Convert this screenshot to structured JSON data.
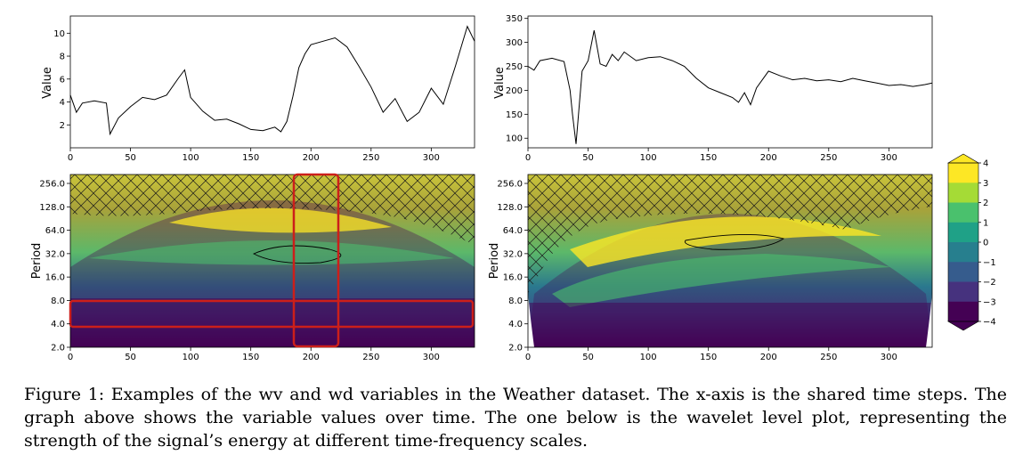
{
  "chart_data": [
    {
      "type": "line",
      "name": "wv",
      "ylabel": "Value",
      "xlim": [
        0,
        336
      ],
      "ylim": [
        0,
        11.5
      ],
      "x_ticks": [
        0,
        50,
        100,
        150,
        200,
        250,
        300
      ],
      "y_ticks": [
        2,
        4,
        6,
        8,
        10
      ],
      "x": [
        0,
        5,
        10,
        20,
        30,
        33,
        40,
        50,
        60,
        70,
        80,
        90,
        95,
        100,
        110,
        120,
        130,
        140,
        150,
        160,
        170,
        175,
        180,
        185,
        190,
        195,
        200,
        210,
        220,
        230,
        240,
        250,
        260,
        270,
        280,
        290,
        300,
        310,
        320,
        330,
        336
      ],
      "y": [
        4.6,
        3.1,
        3.9,
        4.1,
        3.9,
        1.2,
        2.6,
        3.6,
        4.4,
        4.2,
        4.6,
        6.1,
        6.8,
        4.4,
        3.2,
        2.4,
        2.5,
        2.1,
        1.6,
        1.5,
        1.8,
        1.4,
        2.3,
        4.5,
        7.0,
        8.2,
        9.0,
        9.3,
        9.6,
        8.8,
        7.1,
        5.3,
        3.1,
        4.3,
        2.3,
        3.1,
        5.2,
        3.8,
        7.1,
        10.6,
        9.3
      ]
    },
    {
      "type": "line",
      "name": "wd",
      "ylabel": "Value",
      "xlim": [
        0,
        336
      ],
      "ylim": [
        80,
        355
      ],
      "x_ticks": [
        0,
        50,
        100,
        150,
        200,
        250,
        300
      ],
      "y_ticks": [
        100,
        150,
        200,
        250,
        300,
        350
      ],
      "x": [
        0,
        5,
        10,
        20,
        30,
        35,
        37,
        40,
        45,
        50,
        55,
        60,
        65,
        70,
        75,
        80,
        90,
        100,
        110,
        120,
        130,
        140,
        150,
        160,
        170,
        175,
        180,
        185,
        190,
        200,
        210,
        220,
        230,
        240,
        250,
        260,
        270,
        280,
        290,
        300,
        310,
        320,
        330,
        336
      ],
      "y": [
        250,
        242,
        262,
        267,
        260,
        200,
        150,
        88,
        240,
        262,
        325,
        255,
        250,
        275,
        262,
        280,
        262,
        268,
        270,
        262,
        250,
        225,
        205,
        195,
        185,
        175,
        195,
        170,
        205,
        240,
        230,
        222,
        225,
        220,
        222,
        218,
        225,
        220,
        215,
        210,
        212,
        208,
        212,
        215
      ]
    },
    {
      "type": "heatmap",
      "name": "wv wavelet level plot",
      "ylabel": "Period",
      "xlim": [
        0,
        336
      ],
      "x_ticks": [
        0,
        50,
        100,
        150,
        200,
        250,
        300
      ],
      "y_ticks": [
        "2.0",
        "4.0",
        "8.0",
        "16.0",
        "32.0",
        "64.0",
        "128.0",
        "256.0"
      ],
      "highlight_boxes": "red rectangles: period 4.0–8.0 across all time; time 185–222 across all periods"
    },
    {
      "type": "heatmap",
      "name": "wd wavelet level plot",
      "ylabel": "Period",
      "xlim": [
        0,
        336
      ],
      "x_ticks": [
        0,
        50,
        100,
        150,
        200,
        250,
        300
      ],
      "y_ticks": [
        "2.0",
        "4.0",
        "8.0",
        "16.0",
        "32.0",
        "64.0",
        "128.0",
        "256.0"
      ]
    }
  ],
  "colorbar": {
    "ticks": [
      "4",
      "3",
      "2",
      "1",
      "0",
      "−1",
      "−2",
      "−3",
      "−4"
    ],
    "colors": [
      "#fde725",
      "#a5db36",
      "#4ac16d",
      "#1fa187",
      "#277f8e",
      "#365c8d",
      "#46327e",
      "#440154"
    ]
  },
  "colors": {
    "line": "#000000",
    "highlight": "#cc1f1a",
    "hatch_fill": "#a8a23a",
    "cone_outside": "#ffffff"
  },
  "caption": "Figure 1: Examples of the wv and wd variables in the Weather dataset. The x-axis is the shared time steps. The graph above shows the variable values over time. The one below is the wavelet level plot, representing the strength of the signal’s energy at different time-frequency scales."
}
